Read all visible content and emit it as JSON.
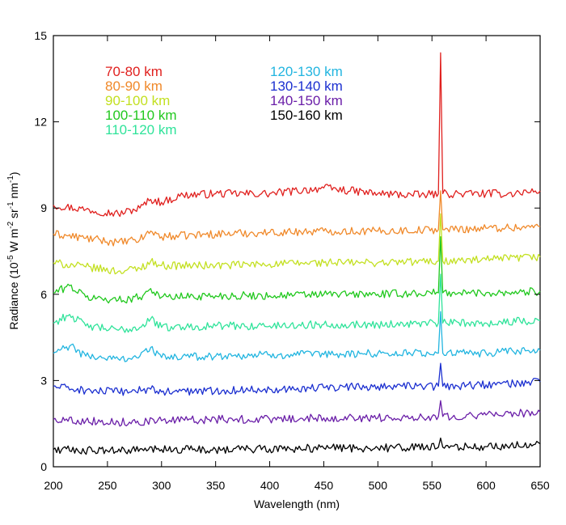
{
  "chart_data": {
    "type": "line",
    "title": "",
    "xlabel": "Wavelength (nm)",
    "ylabel": {
      "main": "Radiance (10",
      "exp1": "-5",
      "mid1": " W m",
      "exp2": "-2",
      "mid2": " sr",
      "exp3": "-1",
      "mid3": " nm",
      "exp4": "-1",
      "end": ")"
    },
    "xlim": [
      200,
      650
    ],
    "ylim": [
      0,
      15
    ],
    "xticks": [
      200,
      250,
      300,
      350,
      400,
      450,
      500,
      550,
      600,
      650
    ],
    "xtick_labels": [
      "200",
      "250",
      "300",
      "350",
      "400",
      "450",
      "500",
      "550",
      "600",
      "650"
    ],
    "yticks": [
      0,
      3,
      6,
      9,
      12,
      15
    ],
    "ytick_labels": [
      "0",
      "3",
      "6",
      "9",
      "12",
      "15"
    ],
    "grid": false,
    "legend_position": "top-left",
    "series": [
      {
        "name": "70-80 km",
        "color": "#e0201e",
        "points": [
          [
            200,
            9.1
          ],
          [
            230,
            8.95
          ],
          [
            260,
            8.8
          ],
          [
            280,
            9.0
          ],
          [
            290,
            9.3
          ],
          [
            300,
            9.2
          ],
          [
            320,
            9.45
          ],
          [
            350,
            9.5
          ],
          [
            400,
            9.5
          ],
          [
            450,
            9.7
          ],
          [
            500,
            9.5
          ],
          [
            540,
            9.45
          ],
          [
            556,
            9.5
          ],
          [
            558,
            14.4
          ],
          [
            560,
            9.5
          ],
          [
            580,
            9.5
          ],
          [
            600,
            9.5
          ],
          [
            620,
            9.5
          ],
          [
            650,
            9.6
          ]
        ]
      },
      {
        "name": "80-90 km",
        "color": "#f0892a",
        "points": [
          [
            200,
            8.1
          ],
          [
            230,
            7.95
          ],
          [
            260,
            7.8
          ],
          [
            280,
            7.9
          ],
          [
            290,
            8.2
          ],
          [
            300,
            8.0
          ],
          [
            350,
            8.1
          ],
          [
            400,
            8.15
          ],
          [
            450,
            8.2
          ],
          [
            500,
            8.2
          ],
          [
            556,
            8.25
          ],
          [
            558,
            9.6
          ],
          [
            560,
            8.25
          ],
          [
            600,
            8.3
          ],
          [
            650,
            8.35
          ]
        ]
      },
      {
        "name": "90-100 km",
        "color": "#c3e021",
        "points": [
          [
            200,
            7.1
          ],
          [
            230,
            6.95
          ],
          [
            260,
            6.8
          ],
          [
            280,
            6.9
          ],
          [
            290,
            7.15
          ],
          [
            300,
            7.0
          ],
          [
            350,
            7.0
          ],
          [
            400,
            7.05
          ],
          [
            450,
            7.1
          ],
          [
            500,
            7.1
          ],
          [
            556,
            7.15
          ],
          [
            558,
            8.8
          ],
          [
            560,
            7.15
          ],
          [
            600,
            7.2
          ],
          [
            650,
            7.3
          ]
        ]
      },
      {
        "name": "100-110 km",
        "color": "#21c81e",
        "points": [
          [
            200,
            6.05
          ],
          [
            215,
            6.3
          ],
          [
            230,
            5.9
          ],
          [
            260,
            5.8
          ],
          [
            280,
            5.9
          ],
          [
            290,
            6.2
          ],
          [
            300,
            5.9
          ],
          [
            350,
            5.95
          ],
          [
            400,
            5.95
          ],
          [
            450,
            6.0
          ],
          [
            500,
            6.0
          ],
          [
            556,
            6.05
          ],
          [
            558,
            8.0
          ],
          [
            560,
            6.05
          ],
          [
            600,
            6.05
          ],
          [
            650,
            6.1
          ]
        ]
      },
      {
        "name": "110-120 km",
        "color": "#2fe39a",
        "points": [
          [
            200,
            5.0
          ],
          [
            215,
            5.3
          ],
          [
            230,
            4.9
          ],
          [
            260,
            4.75
          ],
          [
            280,
            4.85
          ],
          [
            290,
            5.15
          ],
          [
            300,
            4.85
          ],
          [
            350,
            4.9
          ],
          [
            400,
            4.9
          ],
          [
            450,
            4.95
          ],
          [
            500,
            4.95
          ],
          [
            556,
            5.0
          ],
          [
            558,
            6.7
          ],
          [
            560,
            5.0
          ],
          [
            600,
            5.0
          ],
          [
            650,
            5.1
          ]
        ]
      },
      {
        "name": "120-130 km",
        "color": "#22b5e0",
        "points": [
          [
            200,
            3.95
          ],
          [
            215,
            4.2
          ],
          [
            230,
            3.85
          ],
          [
            260,
            3.75
          ],
          [
            280,
            3.85
          ],
          [
            290,
            4.15
          ],
          [
            300,
            3.8
          ],
          [
            350,
            3.85
          ],
          [
            400,
            3.9
          ],
          [
            450,
            3.9
          ],
          [
            500,
            3.95
          ],
          [
            556,
            3.95
          ],
          [
            558,
            5.4
          ],
          [
            560,
            3.95
          ],
          [
            600,
            3.95
          ],
          [
            650,
            4.05
          ]
        ]
      },
      {
        "name": "130-140 km",
        "color": "#1b2fd0",
        "points": [
          [
            200,
            2.8
          ],
          [
            230,
            2.65
          ],
          [
            260,
            2.6
          ],
          [
            290,
            2.7
          ],
          [
            300,
            2.6
          ],
          [
            350,
            2.65
          ],
          [
            400,
            2.7
          ],
          [
            450,
            2.75
          ],
          [
            500,
            2.8
          ],
          [
            556,
            2.8
          ],
          [
            558,
            3.6
          ],
          [
            560,
            2.8
          ],
          [
            600,
            2.85
          ],
          [
            650,
            2.95
          ]
        ]
      },
      {
        "name": "140-150 km",
        "color": "#6a1ea8",
        "points": [
          [
            200,
            1.65
          ],
          [
            230,
            1.6
          ],
          [
            260,
            1.55
          ],
          [
            300,
            1.6
          ],
          [
            350,
            1.65
          ],
          [
            400,
            1.65
          ],
          [
            450,
            1.7
          ],
          [
            500,
            1.7
          ],
          [
            556,
            1.75
          ],
          [
            558,
            2.3
          ],
          [
            560,
            1.75
          ],
          [
            600,
            1.8
          ],
          [
            650,
            1.9
          ]
        ]
      },
      {
        "name": "150-160 km",
        "color": "#000000",
        "points": [
          [
            200,
            0.6
          ],
          [
            250,
            0.55
          ],
          [
            300,
            0.6
          ],
          [
            350,
            0.6
          ],
          [
            400,
            0.62
          ],
          [
            450,
            0.65
          ],
          [
            500,
            0.65
          ],
          [
            556,
            0.68
          ],
          [
            558,
            1.0
          ],
          [
            560,
            0.68
          ],
          [
            600,
            0.7
          ],
          [
            650,
            0.8
          ]
        ]
      }
    ]
  }
}
